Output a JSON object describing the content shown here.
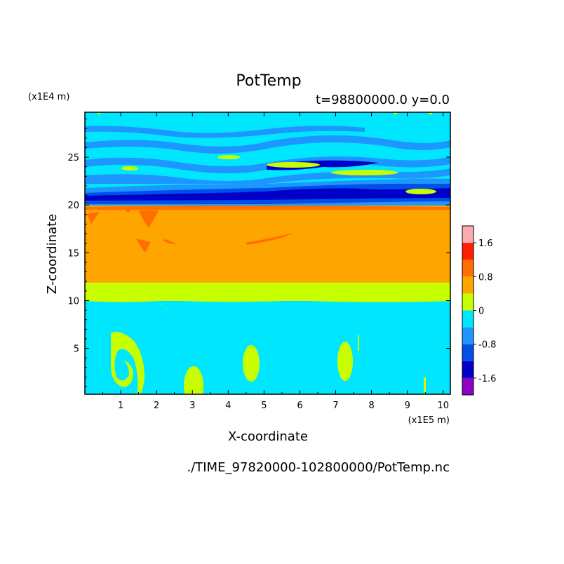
{
  "chart_data": {
    "type": "heatmap",
    "title": "PotTemp",
    "subtitle": "t=98800000.0 y=0.0",
    "xlabel": "X-coordinate",
    "ylabel": "Z-coordinate",
    "x_unit": "(x1E5 m)",
    "y_unit": "(x1E4 m)",
    "footer": "./TIME_97820000-102800000/PotTemp.nc",
    "xlim": [
      0,
      10.2
    ],
    "ylim": [
      0.2,
      29.7
    ],
    "x_ticks": [
      1,
      2,
      3,
      4,
      5,
      6,
      7,
      8,
      9,
      10
    ],
    "y_ticks": [
      5,
      10,
      15,
      20,
      25
    ],
    "colorbar": {
      "levels": [
        -2.0,
        -1.6,
        -1.2,
        -0.8,
        -0.4,
        0,
        0.4,
        0.8,
        1.2,
        1.6,
        2.0
      ],
      "colors": [
        "#8f00c8",
        "#0000c8",
        "#0050e8",
        "#1e96ff",
        "#00e6ff",
        "#c8ff00",
        "#ffa500",
        "#ff6e00",
        "#ff1e00",
        "#ffaaaa"
      ],
      "tick_labels": [
        "-1.6",
        "-0.8",
        "0",
        "0.8",
        "1.6"
      ]
    },
    "bands": [
      {
        "z_from": 0.2,
        "z_to": 10.0,
        "range": "-0.4 to 0"
      },
      {
        "z_from": 10.0,
        "z_to": 12.0,
        "range": "0 to 0.4"
      },
      {
        "z_from": 12.0,
        "z_to": 20.0,
        "range": "0.4 to 0.8"
      },
      {
        "z_from": 20.0,
        "z_to": 22.5,
        "range": "-1.6 to -0.8"
      },
      {
        "z_from": 22.5,
        "z_to": 29.7,
        "range": "-0.8 to 0.4"
      }
    ]
  }
}
